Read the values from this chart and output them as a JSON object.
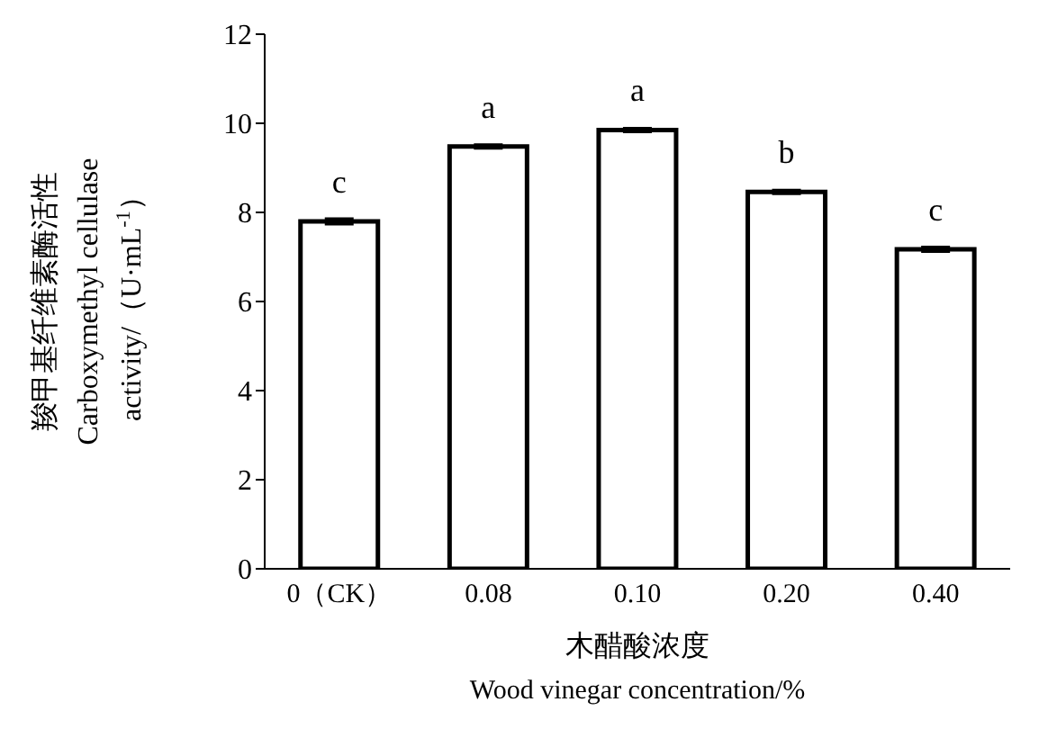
{
  "chart_data": {
    "type": "bar",
    "categories": [
      "0（CK）",
      "0.08",
      "0.10",
      "0.20",
      "0.40"
    ],
    "values": [
      7.8,
      9.48,
      9.85,
      8.46,
      7.17
    ],
    "errors": [
      0.05,
      0.03,
      0.03,
      0.03,
      0.04
    ],
    "color": "#ffffff",
    "ylim": [
      0,
      12
    ],
    "yticks": [
      0,
      2,
      4,
      6,
      8,
      10,
      12
    ],
    "xlabel": "木醋酸浓度\nWood vinegar concentration/%",
    "ylabel": "羧甲基纤维素酶活性\nCarboxymethyl cellulase\nactivity/（U·mL$^{-1}$）",
    "annotations": [
      "c",
      "a",
      "a",
      "b",
      "c"
    ],
    "grid": false,
    "legend": false
  }
}
